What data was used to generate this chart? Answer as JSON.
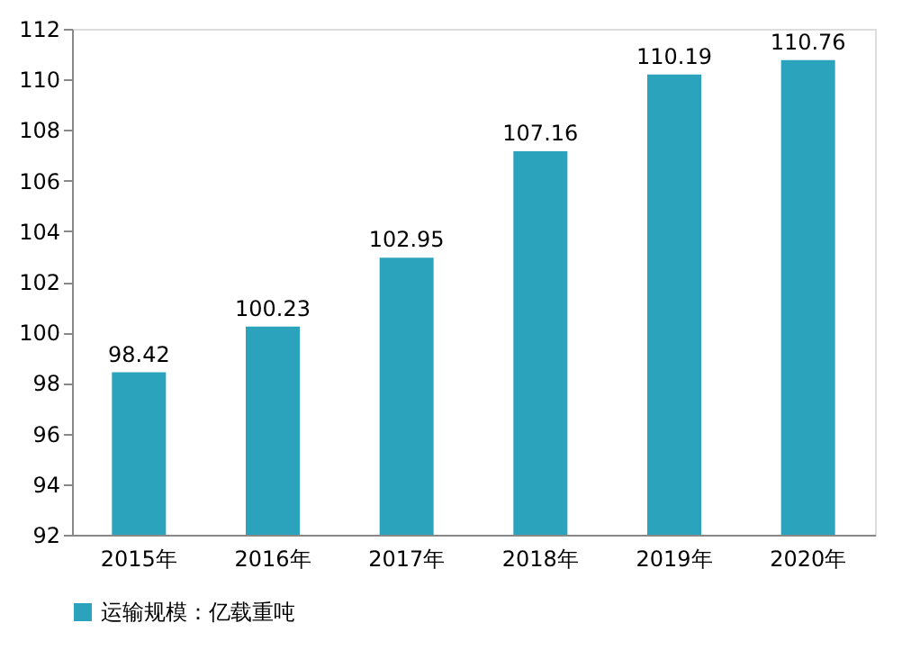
{
  "chart_data": {
    "type": "bar",
    "categories": [
      "2015年",
      "2016年",
      "2017年",
      "2018年",
      "2019年",
      "2020年"
    ],
    "series": [
      {
        "name": "运输规模：亿载重吨",
        "color": "#2ba3bd",
        "values": [
          98.42,
          100.23,
          102.95,
          107.16,
          110.19,
          110.76
        ]
      }
    ],
    "ylim": [
      92,
      112
    ],
    "yticks": [
      92,
      94,
      96,
      98,
      100,
      102,
      104,
      106,
      108,
      110,
      112
    ],
    "data_labels": true,
    "grid": false,
    "legend": "bottom"
  }
}
